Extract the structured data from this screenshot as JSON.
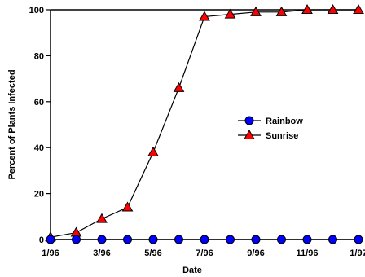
{
  "chart_data": {
    "type": "line",
    "xlabel": "Date",
    "ylabel": "Percent of Plants Infected",
    "ylim": [
      0,
      100
    ],
    "yticks": [
      0,
      20,
      40,
      60,
      80,
      100
    ],
    "x_points": [
      "1/96",
      "2/96",
      "3/96",
      "4/96",
      "5/96",
      "6/96",
      "7/96",
      "8/96",
      "9/96",
      "10/96",
      "11/96",
      "12/96",
      "1/97"
    ],
    "xtick_labels": [
      "1/96",
      "3/96",
      "5/96",
      "7/96",
      "9/96",
      "11/96",
      "1/97"
    ],
    "grid": false,
    "legend_position": "center-right",
    "series": [
      {
        "name": "Rainbow",
        "marker": "circle",
        "color": "#0000FF",
        "values": [
          0,
          0,
          0,
          0,
          0,
          0,
          0,
          0,
          0,
          0,
          0,
          0,
          0
        ]
      },
      {
        "name": "Sunrise",
        "marker": "triangle",
        "color": "#FF0000",
        "values": [
          1,
          3,
          9,
          14,
          38,
          66,
          97,
          98,
          99,
          99,
          100,
          100,
          100
        ]
      }
    ]
  }
}
